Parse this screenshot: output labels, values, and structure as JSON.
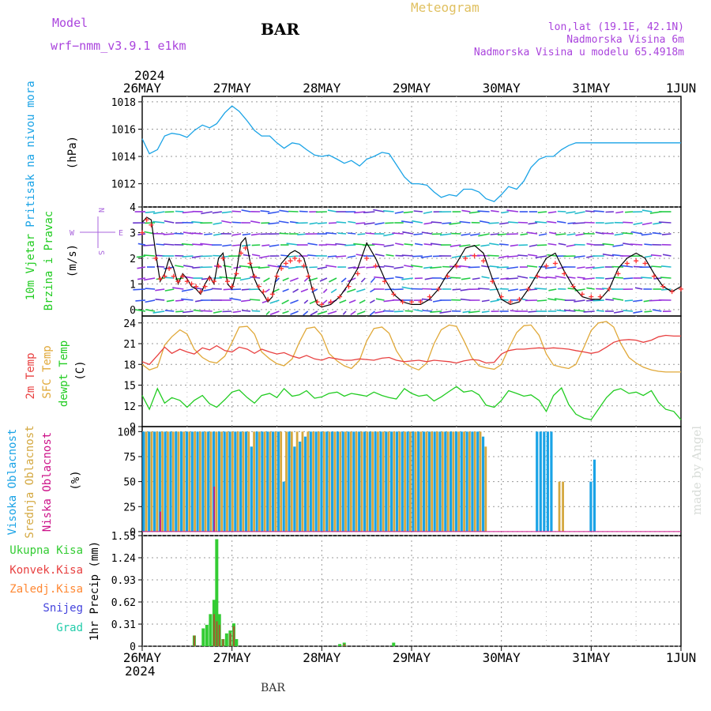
{
  "header": {
    "model_label": "Model",
    "model_name": "wrf−nmm_v3.9.1  e1km",
    "station": "BAR",
    "title": "Meteogram",
    "lonlat": "lon,lat (19.1E, 42.1N)",
    "elevation": "Nadmorska Visina 6m",
    "model_elevation": "Nadmorska Visina u modelu 65.4918m",
    "year_top": "2024",
    "year_bottom": "2024",
    "footer_station": "BAR",
    "credit": "made by Angel"
  },
  "colors": {
    "pressure": "#1aa3e6",
    "wind_speed": "#000000",
    "gust": "#ff3333",
    "temp2m": "#e84040",
    "sfc_temp": "#e0a838",
    "dewpoint": "#22cc22",
    "cloud_high": "#1aa3e6",
    "cloud_mid": "#d4a840",
    "cloud_low": "#cc1188",
    "rain_total": "#33cc33",
    "rain_conv": "#e84040",
    "freezing": "#ff8833",
    "snow": "#4444dd",
    "hail": "#22ccaa",
    "compass": "#aa66dd",
    "title_color": "#e0c060",
    "header_purple": "#aa44dd",
    "credit_color": "#d8dcd8"
  },
  "chart_data": [
    {
      "type": "line",
      "panel": "pressure",
      "ylabel_left": "Pritisak na nivou mora",
      "ylabel_unit": "(hPa)",
      "x_ticks": [
        "26MAY",
        "27MAY",
        "28MAY",
        "29MAY",
        "30MAY",
        "31MAY",
        "1JUN"
      ],
      "y_ticks": [
        1012,
        1014,
        1016,
        1018
      ],
      "ylim": [
        1010.3,
        1018.4
      ],
      "x_days": [
        0,
        0.08,
        0.17,
        0.25,
        0.33,
        0.42,
        0.5,
        0.58,
        0.67,
        0.75,
        0.83,
        0.92,
        1.0,
        1.08,
        1.17,
        1.25,
        1.33,
        1.42,
        1.5,
        1.58,
        1.67,
        1.75,
        1.83,
        1.92,
        2.0,
        2.08,
        2.17,
        2.25,
        2.33,
        2.42,
        2.5,
        2.58,
        2.67,
        2.75,
        2.83,
        2.92,
        3.0,
        3.08,
        3.17,
        3.25,
        3.33,
        3.42,
        3.5,
        3.58,
        3.67,
        3.75,
        3.83,
        3.92,
        4.0,
        4.08,
        4.17,
        4.25,
        4.33,
        4.42,
        4.5,
        4.58,
        4.67,
        4.75,
        4.83,
        4.92,
        5.0,
        5.08,
        5.17,
        5.25,
        5.33,
        5.42,
        5.5,
        5.58,
        5.67,
        5.75,
        5.83,
        5.92,
        6.0
      ],
      "values": [
        1015.3,
        1014.2,
        1014.5,
        1015.5,
        1015.7,
        1015.6,
        1015.4,
        1015.9,
        1016.3,
        1016.1,
        1016.4,
        1017.2,
        1017.7,
        1017.3,
        1016.6,
        1015.9,
        1015.5,
        1015.5,
        1015.0,
        1014.6,
        1015.0,
        1014.9,
        1014.5,
        1014.1,
        1014.0,
        1014.1,
        1013.8,
        1013.5,
        1013.7,
        1013.3,
        1013.8,
        1014.0,
        1014.3,
        1014.2,
        1013.4,
        1012.5,
        1012.0,
        1012.0,
        1011.9,
        1011.4,
        1011.0,
        1011.2,
        1011.1,
        1011.6,
        1011.6,
        1011.4,
        1010.9,
        1010.7,
        1011.2,
        1011.8,
        1011.6,
        1012.2,
        1013.2,
        1013.8,
        1014.0,
        1014.0,
        1014.5,
        1014.8,
        1015.0,
        1015.0,
        1015.0,
        1015.0,
        1015.0,
        1015.0,
        1015.0,
        1015.0,
        1015.0,
        1015.0,
        1015.0,
        1015.0,
        1015.0,
        1015.0,
        1015.0
      ]
    },
    {
      "type": "line",
      "panel": "wind",
      "ylabel_left_1": "10m Vjetar",
      "ylabel_left_2": "Brzina i Pravac",
      "ylabel_unit": "(m/s)",
      "compass": {
        "north": "N",
        "south": "S",
        "west": "W",
        "east": "E"
      },
      "y_ticks": [
        0,
        1,
        2,
        3,
        4
      ],
      "ylim": [
        -0.25,
        4
      ],
      "x_days": [
        0,
        0.05,
        0.1,
        0.15,
        0.2,
        0.25,
        0.3,
        0.35,
        0.4,
        0.45,
        0.5,
        0.55,
        0.6,
        0.65,
        0.7,
        0.75,
        0.8,
        0.85,
        0.9,
        0.95,
        1.0,
        1.05,
        1.1,
        1.15,
        1.2,
        1.25,
        1.3,
        1.35,
        1.4,
        1.45,
        1.5,
        1.55,
        1.6,
        1.65,
        1.7,
        1.75,
        1.8,
        1.85,
        1.9,
        1.95,
        2.0,
        2.1,
        2.2,
        2.3,
        2.4,
        2.5,
        2.6,
        2.7,
        2.8,
        2.9,
        3.0,
        3.1,
        3.2,
        3.3,
        3.4,
        3.5,
        3.6,
        3.7,
        3.8,
        3.9,
        4.0,
        4.1,
        4.2,
        4.3,
        4.4,
        4.5,
        4.6,
        4.7,
        4.8,
        4.9,
        5.0,
        5.1,
        5.2,
        5.3,
        5.4,
        5.5,
        5.6,
        5.7,
        5.8,
        5.9,
        6.0
      ],
      "speed": [
        3.4,
        3.6,
        3.5,
        2.2,
        1.1,
        1.4,
        2.0,
        1.6,
        1.0,
        1.4,
        1.2,
        0.9,
        0.8,
        0.6,
        1.0,
        1.3,
        1.0,
        2.0,
        2.2,
        1.0,
        0.8,
        1.5,
        2.6,
        2.8,
        1.9,
        1.2,
        0.8,
        0.6,
        0.3,
        0.5,
        1.4,
        1.8,
        2.0,
        2.2,
        2.3,
        2.2,
        2.0,
        1.4,
        0.7,
        0.2,
        0.1,
        0.2,
        0.5,
        1.0,
        1.6,
        2.6,
        2.0,
        1.2,
        0.6,
        0.3,
        0.2,
        0.2,
        0.4,
        0.8,
        1.4,
        1.8,
        2.4,
        2.5,
        2.2,
        1.2,
        0.4,
        0.2,
        0.3,
        0.8,
        1.4,
        2.0,
        2.2,
        1.5,
        0.9,
        0.5,
        0.4,
        0.4,
        0.8,
        1.6,
        2.0,
        2.2,
        2.0,
        1.4,
        0.9,
        0.7,
        0.9
      ],
      "gust": [
        3.0,
        3.5,
        3.3,
        2.0,
        1.2,
        1.3,
        1.6,
        1.3,
        1.1,
        1.3,
        1.1,
        1.0,
        0.9,
        0.7,
        0.9,
        1.2,
        1.1,
        1.7,
        2.0,
        1.1,
        0.9,
        1.4,
        2.2,
        2.4,
        1.8,
        1.3,
        0.9,
        0.7,
        0.4,
        0.6,
        1.3,
        1.6,
        1.8,
        1.9,
        2.0,
        1.9,
        1.7,
        1.3,
        0.8,
        0.3,
        0.2,
        0.3,
        0.5,
        0.9,
        1.4,
        2.0,
        1.7,
        1.1,
        0.6,
        0.3,
        0.3,
        0.3,
        0.5,
        0.8,
        1.3,
        1.7,
        2.0,
        2.1,
        1.9,
        1.1,
        0.5,
        0.3,
        0.4,
        0.8,
        1.3,
        1.7,
        1.8,
        1.4,
        0.9,
        0.6,
        0.5,
        0.5,
        0.8,
        1.4,
        1.8,
        1.9,
        1.8,
        1.3,
        0.9,
        0.7,
        0.8
      ]
    },
    {
      "type": "line",
      "panel": "temperature",
      "ylabel_left_1": "2m Temp",
      "ylabel_left_2": "SFC Temp",
      "ylabel_left_3": "dewpt Temp",
      "ylabel_unit": "(C)",
      "y_ticks": [
        9,
        12,
        15,
        18,
        21,
        24
      ],
      "ylim": [
        9,
        25
      ],
      "x_days": [
        0,
        0.08,
        0.17,
        0.25,
        0.33,
        0.42,
        0.5,
        0.58,
        0.67,
        0.75,
        0.83,
        0.92,
        1.0,
        1.08,
        1.17,
        1.25,
        1.33,
        1.42,
        1.5,
        1.58,
        1.67,
        1.75,
        1.83,
        1.92,
        2.0,
        2.08,
        2.17,
        2.25,
        2.33,
        2.42,
        2.5,
        2.58,
        2.67,
        2.75,
        2.83,
        2.92,
        3.0,
        3.08,
        3.17,
        3.25,
        3.33,
        3.42,
        3.5,
        3.58,
        3.67,
        3.75,
        3.83,
        3.92,
        4.0,
        4.08,
        4.17,
        4.25,
        4.33,
        4.42,
        4.5,
        4.58,
        4.67,
        4.75,
        4.83,
        4.92,
        5.0,
        5.08,
        5.17,
        5.25,
        5.33,
        5.42,
        5.5,
        5.58,
        5.67,
        5.75,
        5.83,
        5.92,
        6.0
      ],
      "temp2m": [
        18.4,
        18.0,
        19.3,
        20.5,
        19.6,
        20.2,
        19.8,
        19.5,
        20.4,
        20.1,
        20.7,
        20.0,
        19.8,
        20.5,
        20.2,
        19.6,
        20.2,
        19.8,
        19.5,
        19.7,
        19.2,
        18.9,
        19.3,
        18.8,
        18.6,
        19.0,
        18.8,
        18.6,
        18.6,
        18.8,
        18.7,
        18.6,
        18.9,
        19.0,
        18.6,
        18.4,
        18.5,
        18.6,
        18.4,
        18.6,
        18.5,
        18.4,
        18.2,
        18.5,
        18.7,
        18.6,
        18.2,
        18.3,
        19.5,
        20.0,
        20.2,
        20.2,
        20.3,
        20.4,
        20.3,
        20.4,
        20.3,
        20.2,
        20.0,
        19.8,
        19.6,
        19.8,
        20.5,
        21.2,
        21.5,
        21.6,
        21.5,
        21.2,
        21.5,
        22.0,
        22.2,
        22.1,
        22.1
      ],
      "sfc_temp": [
        18.0,
        17.2,
        17.6,
        20.8,
        22.0,
        23.0,
        22.4,
        20.2,
        19.0,
        18.4,
        18.2,
        19.2,
        21.2,
        23.4,
        23.5,
        22.4,
        19.8,
        18.8,
        18.1,
        17.8,
        18.8,
        21.2,
        23.2,
        23.4,
        22.2,
        19.6,
        18.5,
        17.8,
        17.4,
        18.6,
        21.4,
        23.2,
        23.4,
        22.5,
        20.0,
        18.2,
        17.6,
        17.2,
        18.2,
        21.0,
        23.0,
        23.7,
        23.5,
        21.5,
        19.0,
        17.8,
        17.5,
        17.3,
        18.0,
        20.3,
        22.6,
        23.6,
        23.7,
        22.2,
        19.5,
        17.9,
        17.6,
        17.4,
        18.0,
        20.5,
        22.9,
        24.0,
        24.2,
        23.4,
        21.0,
        19.0,
        18.2,
        17.6,
        17.2,
        17.0,
        16.9,
        16.9,
        16.9
      ],
      "dewpoint": [
        13.5,
        11.5,
        14.5,
        12.4,
        13.2,
        12.8,
        11.8,
        12.8,
        13.5,
        12.3,
        11.8,
        12.9,
        14.0,
        14.3,
        13.2,
        12.4,
        13.5,
        13.8,
        13.2,
        14.5,
        13.4,
        13.6,
        14.2,
        13.1,
        13.3,
        13.8,
        14.0,
        13.4,
        13.8,
        13.6,
        13.4,
        14.0,
        13.5,
        13.2,
        13.0,
        14.5,
        13.8,
        13.4,
        13.6,
        12.7,
        13.3,
        14.1,
        14.8,
        14.0,
        14.2,
        13.6,
        12.1,
        11.8,
        12.8,
        14.2,
        13.8,
        13.4,
        13.6,
        12.8,
        11.2,
        13.5,
        14.6,
        12.2,
        10.8,
        10.2,
        10.0,
        11.5,
        13.2,
        14.2,
        14.5,
        13.8,
        14.0,
        13.5,
        14.2,
        12.5,
        11.5,
        11.2,
        10.0
      ]
    },
    {
      "type": "bar",
      "panel": "cloud",
      "ylabel_left_1": "Visoka Oblacnost",
      "ylabel_left_2": "Srednja Oblacnost",
      "ylabel_left_3": "Niska Oblacnost",
      "ylabel_unit": "(%)",
      "y_ticks": [
        0,
        25,
        50,
        75,
        100
      ],
      "ylim": [
        0,
        100
      ],
      "x_days": [
        0.02,
        0.08,
        0.14,
        0.2,
        0.26,
        0.32,
        0.38,
        0.44,
        0.5,
        0.56,
        0.62,
        0.68,
        0.74,
        0.8,
        0.86,
        0.92,
        0.98,
        1.04,
        1.1,
        1.16,
        1.22,
        1.28,
        1.34,
        1.4,
        1.46,
        1.52,
        1.58,
        1.64,
        1.7,
        1.76,
        1.82,
        1.88,
        1.94,
        2.0,
        2.06,
        2.12,
        2.18,
        2.24,
        2.3,
        2.36,
        2.42,
        2.48,
        2.54,
        2.6,
        2.66,
        2.72,
        2.78,
        2.84,
        2.9,
        2.96,
        3.02,
        3.08,
        3.14,
        3.2,
        3.26,
        3.32,
        3.38,
        3.44,
        3.5,
        3.56,
        3.62,
        3.68,
        3.74,
        3.8,
        4.4,
        4.44,
        4.48,
        4.52,
        4.56,
        4.62,
        4.66,
        5.0,
        5.04
      ],
      "high": [
        100,
        100,
        100,
        100,
        100,
        100,
        100,
        100,
        100,
        100,
        100,
        100,
        100,
        100,
        100,
        100,
        100,
        100,
        100,
        100,
        85,
        100,
        100,
        100,
        100,
        100,
        50,
        100,
        85,
        90,
        95,
        100,
        100,
        100,
        100,
        100,
        100,
        100,
        100,
        100,
        100,
        100,
        100,
        100,
        100,
        100,
        100,
        100,
        100,
        100,
        100,
        100,
        100,
        100,
        100,
        100,
        100,
        100,
        100,
        100,
        100,
        100,
        100,
        95,
        100,
        100,
        100,
        100,
        100,
        0,
        0,
        50,
        72
      ],
      "mid": [
        100,
        100,
        100,
        100,
        100,
        100,
        100,
        100,
        100,
        100,
        100,
        100,
        100,
        100,
        100,
        100,
        100,
        100,
        100,
        100,
        100,
        100,
        100,
        100,
        100,
        100,
        100,
        100,
        100,
        100,
        100,
        100,
        100,
        100,
        100,
        100,
        100,
        100,
        100,
        100,
        100,
        100,
        100,
        100,
        100,
        100,
        100,
        100,
        100,
        100,
        100,
        100,
        100,
        100,
        100,
        100,
        100,
        100,
        100,
        100,
        100,
        100,
        100,
        85,
        0,
        0,
        0,
        0,
        0,
        50,
        50,
        0,
        0
      ],
      "low": [
        0,
        0,
        0,
        20,
        0,
        0,
        0,
        0,
        0,
        0,
        0,
        0,
        0,
        45,
        0,
        0,
        0,
        0,
        0,
        0,
        0,
        0,
        0,
        0,
        0,
        0,
        0,
        0,
        0,
        0,
        0,
        0,
        0,
        0,
        0,
        0,
        0,
        0,
        0,
        0,
        0,
        0,
        0,
        0,
        0,
        0,
        0,
        0,
        0,
        0,
        0,
        0,
        0,
        0,
        0,
        0,
        0,
        0,
        0,
        0,
        0,
        0,
        0,
        0,
        0,
        0,
        0,
        0,
        0,
        0,
        0,
        0,
        0
      ]
    },
    {
      "type": "bar",
      "panel": "precip",
      "ylabel_unit": "1hr Precip (mm)",
      "legend": [
        "Ukupna Kisa",
        "Konvek.Kisa",
        "Zaledj.Kisa",
        "Snijeg",
        "Grad"
      ],
      "y_ticks": [
        0,
        0.31,
        0.62,
        0.93,
        1.24,
        1.55
      ],
      "ylim": [
        0,
        1.55
      ],
      "x_days": [
        0.58,
        0.68,
        0.72,
        0.76,
        0.8,
        0.83,
        0.86,
        0.9,
        0.94,
        0.98,
        1.02,
        1.05,
        2.2,
        2.25,
        2.8
      ],
      "total": [
        0.15,
        0.25,
        0.3,
        0.45,
        0.65,
        1.5,
        0.45,
        0.1,
        0.18,
        0.22,
        0.32,
        0.1,
        0.03,
        0.05,
        0.05
      ],
      "conv": [
        0.15,
        0.0,
        0.0,
        0.0,
        0.45,
        0.35,
        0.3,
        0.1,
        0.0,
        0.18,
        0.28,
        0.0,
        0.0,
        0.03,
        0.0
      ]
    }
  ]
}
